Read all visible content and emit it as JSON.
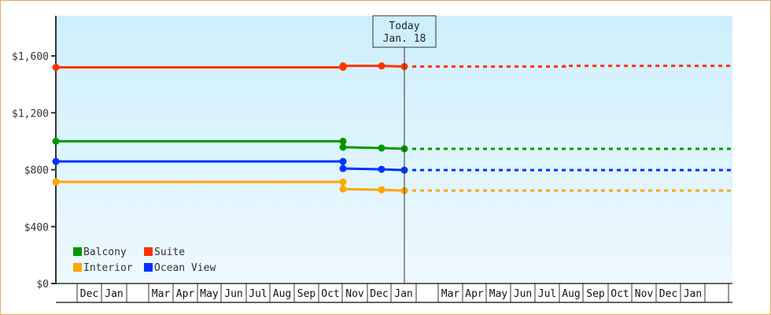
{
  "chart_data": {
    "type": "line",
    "title": "",
    "xlabel": "",
    "ylabel": "",
    "ylim": [
      0,
      1880
    ],
    "y_ticks": [
      "$0",
      "$400",
      "$800",
      "$1,200",
      "$1,600"
    ],
    "y_tick_values": [
      0,
      400,
      800,
      1200,
      1600
    ],
    "x_month_labels": [
      "",
      "Dec",
      "Jan",
      "",
      "Mar",
      "Apr",
      "May",
      "Jun",
      "Jul",
      "Aug",
      "Sep",
      "Oct",
      "Nov",
      "Dec",
      "Jan",
      "",
      "Mar",
      "Apr",
      "May",
      "Jun",
      "Jul",
      "Aug",
      "Sep",
      "Oct",
      "Nov",
      "Dec",
      "Jan",
      ""
    ],
    "today_marker": {
      "line1": "Today",
      "line2": "Jan. 18"
    },
    "legend": [
      {
        "name": "Balcony",
        "color": "#009900"
      },
      {
        "name": "Suite",
        "color": "#ff3300"
      },
      {
        "name": "Interior",
        "color": "#ffa500"
      },
      {
        "name": "Ocean View",
        "color": "#0033ff"
      }
    ],
    "series": [
      {
        "name": "Suite",
        "color": "#ff3300",
        "history": [
          {
            "date": "Nov",
            "value": 1520
          },
          {
            "date": "Oct",
            "value": 1520
          },
          {
            "date": "Oct",
            "value": 1530
          },
          {
            "date": "Dec",
            "value": 1530
          },
          {
            "date": "Jan 18",
            "value": 1525
          }
        ],
        "forecast": [
          {
            "date": "Jan 18",
            "value": 1525
          },
          {
            "date": "Aug",
            "value": 1525
          },
          {
            "date": "Aug",
            "value": 1530
          },
          {
            "date": "Jan",
            "value": 1530
          }
        ]
      },
      {
        "name": "Balcony",
        "color": "#009900",
        "history": [
          {
            "date": "Nov",
            "value": 1000
          },
          {
            "date": "Oct",
            "value": 1000
          },
          {
            "date": "Oct",
            "value": 958
          },
          {
            "date": "Dec",
            "value": 952
          },
          {
            "date": "Jan 18",
            "value": 947
          }
        ],
        "forecast": [
          {
            "date": "Jan 18",
            "value": 947
          },
          {
            "date": "Jan",
            "value": 947
          }
        ]
      },
      {
        "name": "Ocean View",
        "color": "#0033ff",
        "history": [
          {
            "date": "Nov",
            "value": 858
          },
          {
            "date": "Oct",
            "value": 858
          },
          {
            "date": "Oct",
            "value": 808
          },
          {
            "date": "Dec",
            "value": 803
          },
          {
            "date": "Jan 18",
            "value": 797
          }
        ],
        "forecast": [
          {
            "date": "Jan 18",
            "value": 797
          },
          {
            "date": "Jan",
            "value": 797
          }
        ]
      },
      {
        "name": "Interior",
        "color": "#ffa500",
        "history": [
          {
            "date": "Nov",
            "value": 714
          },
          {
            "date": "Oct",
            "value": 714
          },
          {
            "date": "Oct",
            "value": 664
          },
          {
            "date": "Dec",
            "value": 659
          },
          {
            "date": "Jan 18",
            "value": 653
          }
        ],
        "forecast": [
          {
            "date": "Jan 18",
            "value": 653
          },
          {
            "date": "Jan",
            "value": 653
          }
        ]
      }
    ]
  }
}
